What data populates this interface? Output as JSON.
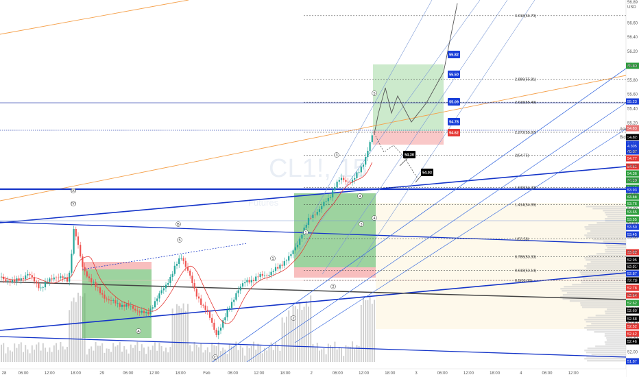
{
  "watermark": {
    "symbol": "CL1!, 15",
    "exchange": "Futures"
  },
  "chart_data": {
    "type": "candlestick",
    "title": "",
    "ylim": [
      51.87,
      56.89
    ],
    "y_axis_labels": [
      "56.89",
      "56.60",
      "56.40",
      "56.20",
      "56.00",
      "55.80",
      "55.60",
      "55.40",
      "55.20",
      "55.00",
      "54.80",
      "54.60",
      "54.40",
      "54.20",
      "54.00",
      "53.80",
      "53.60",
      "53.40",
      "53.20",
      "53.00",
      "52.80",
      "52.60",
      "52.40",
      "52.20",
      "52.00"
    ],
    "x_axis_labels": [
      "28",
      "06:00",
      "12:00",
      "18:00",
      "29",
      "06:00",
      "12:00",
      "18:00",
      "Feb",
      "06:00",
      "12:00",
      "18:00",
      "2",
      "06:00",
      "12:00",
      "18:00",
      "3",
      "06:00",
      "12:00",
      "18:00",
      "4",
      "06:00",
      "12:00"
    ],
    "fibonacci_levels": [
      {
        "label": "3.618(56.70)",
        "value": 56.7
      },
      {
        "label": "2.886(55.81)",
        "value": 55.81
      },
      {
        "label": "2.618(55.49)",
        "value": 55.49
      },
      {
        "label": "2.272(55.07)",
        "value": 55.07
      },
      {
        "label": "2(54.75)",
        "value": 54.75
      },
      {
        "label": "1.618(54.30)",
        "value": 54.3
      },
      {
        "label": "1.414(54.06)",
        "value": 54.06
      },
      {
        "label": "1(53.58)",
        "value": 53.58
      },
      {
        "label": "0.786(53.33)",
        "value": 53.33
      },
      {
        "label": "0.618(53.14)",
        "value": 53.14
      },
      {
        "label": "0.5(53.00)",
        "value": 53.0
      }
    ],
    "annotation_tags": [
      {
        "text": "55.82",
        "color": "#1a3fd8"
      },
      {
        "text": "55.50",
        "color": "#1a3fd8"
      },
      {
        "text": "55.09",
        "color": "#1a3fd8"
      },
      {
        "text": "54.78",
        "color": "#1a3fd8"
      },
      {
        "text": "54.62",
        "color": "#e53935"
      },
      {
        "text": "54.30",
        "color": "#000000"
      },
      {
        "text": "54.03",
        "color": "#000000"
      }
    ],
    "axis_tags": [
      {
        "text": "55.80",
        "color": "#2e9e3e"
      },
      {
        "text": "55.23",
        "color": "#1a3fd8"
      },
      {
        "text": "54.83",
        "color": "#e57373"
      },
      {
        "text": "54.82",
        "color": "#000000"
      },
      {
        "text": "54.81",
        "color": "#1a3fd8"
      },
      {
        "text": "4.305",
        "color": "#1a3fd8"
      },
      {
        "text": "00:37",
        "color": "#1a3fd8"
      },
      {
        "text": "54.77",
        "color": "#e53935"
      },
      {
        "text": "54.61",
        "color": "#e53935"
      },
      {
        "text": "54.36",
        "color": "#2e9e3e"
      },
      {
        "text": "54.30",
        "color": "#2e9e3e"
      },
      {
        "text": "54.12",
        "color": "#2e9e3e"
      },
      {
        "text": "53.93",
        "color": "#1a3fd8"
      },
      {
        "text": "53.88",
        "color": "#2e9e3e"
      },
      {
        "text": "53.76",
        "color": "#2e9e3e"
      },
      {
        "text": "53.65",
        "color": "#2e9e3e"
      },
      {
        "text": "53.55",
        "color": "#2e9e3e"
      },
      {
        "text": "53.50",
        "color": "#1a3fd8"
      },
      {
        "text": "53.45",
        "color": "#1a3fd8"
      },
      {
        "text": "53.02",
        "color": "#e53935"
      },
      {
        "text": "52.95",
        "color": "#000000"
      },
      {
        "text": "52.91",
        "color": "#000000"
      },
      {
        "text": "52.87",
        "color": "#1a3fd8"
      },
      {
        "text": "52.78",
        "color": "#000000"
      },
      {
        "text": "52.78",
        "color": "#e53935"
      },
      {
        "text": "52.64",
        "color": "#e53935"
      },
      {
        "text": "52.62",
        "color": "#2e9e3e"
      },
      {
        "text": "52.60",
        "color": "#000000"
      },
      {
        "text": "52.58",
        "color": "#000000"
      },
      {
        "text": "52.52",
        "color": "#e53935"
      },
      {
        "text": "52.42",
        "color": "#e53935"
      },
      {
        "text": "52.46",
        "color": "#000000"
      },
      {
        "text": "51.87",
        "color": "#1a3fd8"
      }
    ],
    "axis_small_labels": {
      "usd": "USD",
      "ask": "Ask",
      "bid": "Bid"
    },
    "wave_labels": [
      "(X)",
      "(Y)",
      "B",
      "1",
      "2",
      "3",
      "4",
      "5",
      "A",
      "C",
      "1",
      "2",
      "3",
      "4",
      "5"
    ],
    "colors": {
      "up": "#26a69a",
      "down": "#ef5350",
      "ma": "#e53935",
      "levels": "#1434c8"
    }
  }
}
